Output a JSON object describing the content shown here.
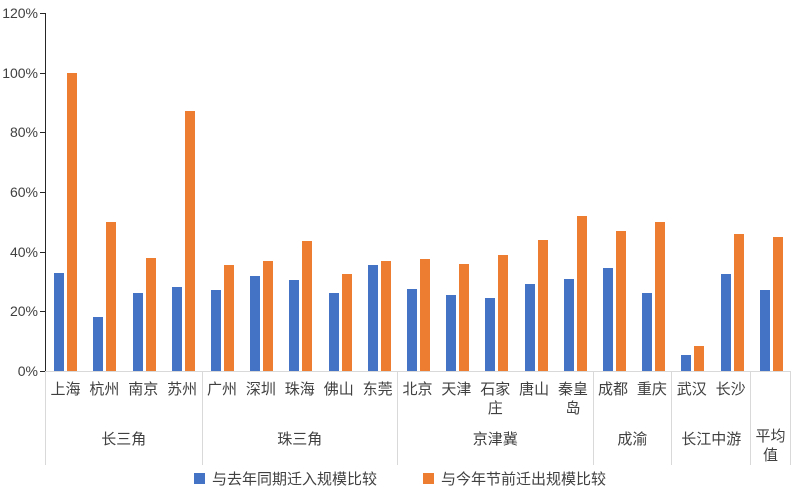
{
  "chart_data": {
    "type": "bar",
    "title": "",
    "xlabel": "",
    "ylabel": "",
    "ylim": [
      0,
      120
    ],
    "y_ticks": [
      "0%",
      "20%",
      "40%",
      "60%",
      "80%",
      "100%",
      "120%"
    ],
    "grid": false,
    "legend_position": "bottom",
    "series_names": [
      "与去年同期迁入规模比较",
      "与今年节前迁出规模比较"
    ],
    "series_colors": [
      "#4472C4",
      "#ED7D31"
    ],
    "value_unit": "%",
    "groups": [
      {
        "name": "长三角",
        "cities": [
          {
            "label": "上海",
            "values": [
              33,
              100
            ]
          },
          {
            "label": "杭州",
            "values": [
              18,
              50
            ]
          },
          {
            "label": "南京",
            "values": [
              26,
              38
            ]
          },
          {
            "label": "苏州",
            "values": [
              28,
              87
            ]
          }
        ]
      },
      {
        "name": "珠三角",
        "cities": [
          {
            "label": "广州",
            "values": [
              27,
              35.5
            ]
          },
          {
            "label": "深圳",
            "values": [
              32,
              37
            ]
          },
          {
            "label": "珠海",
            "values": [
              30.5,
              43.5
            ]
          },
          {
            "label": "佛山",
            "values": [
              26,
              32.5
            ]
          },
          {
            "label": "东莞",
            "values": [
              35.5,
              37
            ]
          }
        ]
      },
      {
        "name": "京津冀",
        "cities": [
          {
            "label": "北京",
            "values": [
              27.5,
              37.5
            ]
          },
          {
            "label": "天津",
            "values": [
              25.5,
              36
            ]
          },
          {
            "label": "石家庄",
            "values": [
              24.5,
              39
            ]
          },
          {
            "label": "唐山",
            "values": [
              29,
              44
            ]
          },
          {
            "label": "秦皇岛",
            "values": [
              31,
              52
            ]
          }
        ]
      },
      {
        "name": "成渝",
        "cities": [
          {
            "label": "成都",
            "values": [
              34.5,
              47
            ]
          },
          {
            "label": "重庆",
            "values": [
              26,
              50
            ]
          }
        ]
      },
      {
        "name": "长江中游",
        "cities": [
          {
            "label": "武汉",
            "values": [
              5.5,
              8.5
            ]
          },
          {
            "label": "长沙",
            "values": [
              32.5,
              46
            ]
          }
        ]
      },
      {
        "name": "平均值",
        "cities": [
          {
            "label": "",
            "values": [
              27,
              45
            ]
          }
        ]
      }
    ]
  },
  "colors": {
    "axis": "#262626",
    "separator": "#d9d9d9",
    "text": "#404040"
  }
}
